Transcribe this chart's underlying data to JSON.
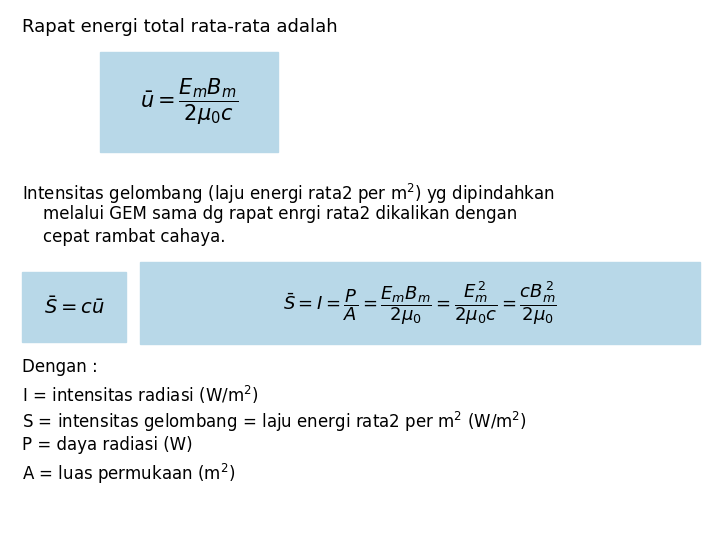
{
  "background_color": "#ffffff",
  "fig_width": 7.2,
  "fig_height": 5.4,
  "dpi": 100,
  "title_text": "Rapat energi total rata-rata adalah",
  "formula1_box_color": "#b8d8e8",
  "formula1_latex": "$\\bar{u} = \\dfrac{E_m B_m}{2\\mu_0 c}$",
  "para_text_line1": "Intensitas gelombang (laju energi rata2 per m$^2$) yg dipindahkan",
  "para_text_line2": "    melalui GEM sama dg rapat enrgi rata2 dikalikan dengan",
  "para_text_line3": "    cepat rambat cahaya.",
  "formula2a_box_color": "#b8d8e8",
  "formula2a_latex": "$\\bar{S} = c\\bar{u}$",
  "formula2b_box_color": "#b8d8e8",
  "formula2b_latex": "$\\bar{S} = I = \\dfrac{P}{A} = \\dfrac{E_m B_m}{2\\mu_0} = \\dfrac{E_m^{\\,2}}{2\\mu_0 c} = \\dfrac{cB_m^{\\,2}}{2\\mu_0}$",
  "definitions_text": [
    "Dengan :",
    "I = intensitas radiasi (W/m$^2$)",
    "S = intensitas gelombang = laju energi rata2 per m$^2$ (W/m$^2$)",
    "P = daya radiasi (W)",
    "A = luas permukaan (m$^2$)"
  ],
  "font_size_title": 13,
  "font_size_para": 12,
  "font_size_def": 12,
  "font_size_formula1": 15,
  "font_size_formula2a": 14,
  "font_size_formula2b": 13
}
